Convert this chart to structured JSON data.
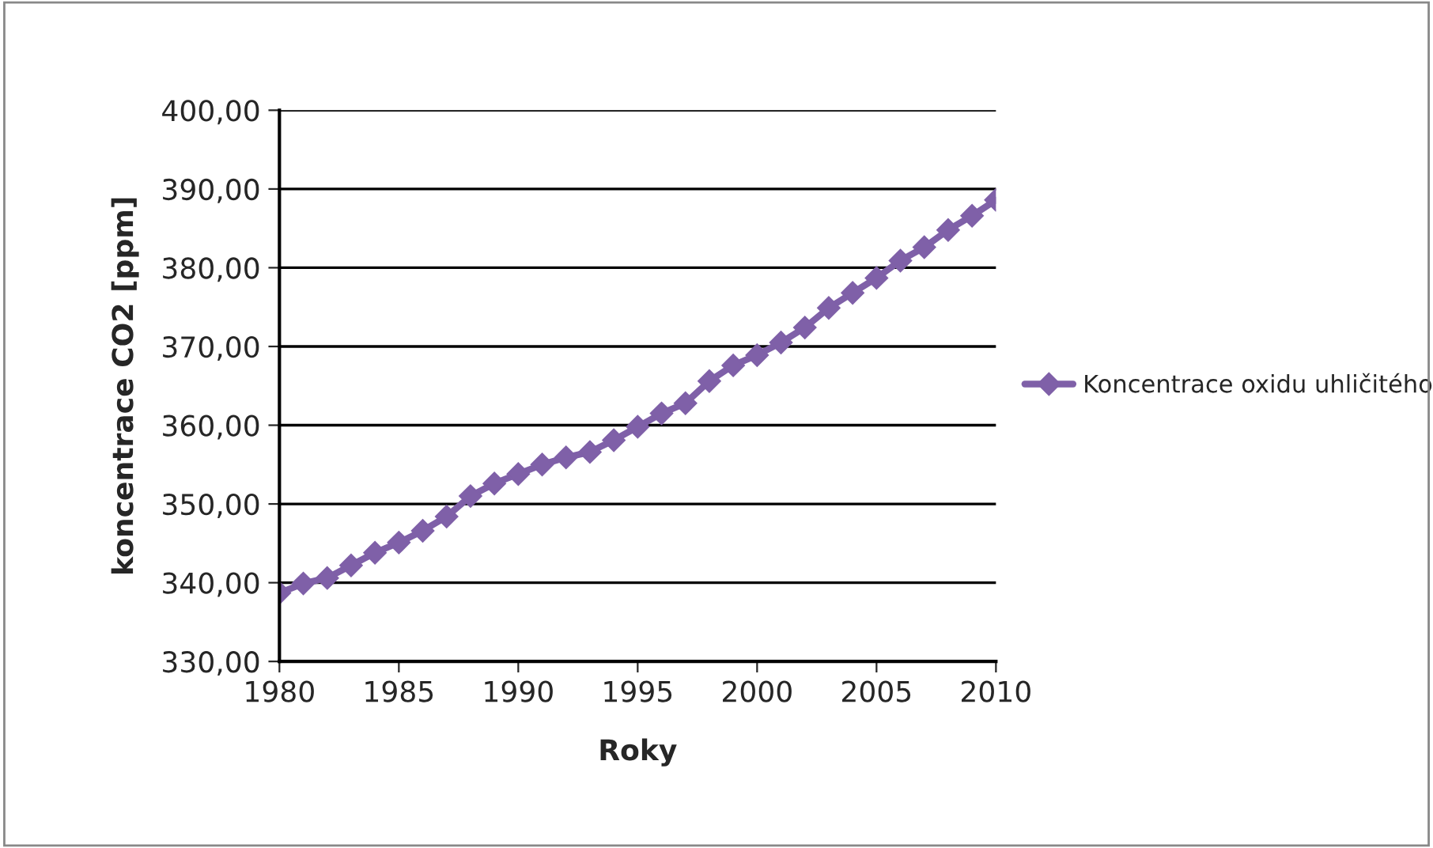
{
  "chart_data": {
    "type": "line",
    "xlabel": "Roky",
    "ylabel": "koncentrace CO2 [ppm]",
    "x": [
      1980,
      1981,
      1982,
      1983,
      1984,
      1985,
      1986,
      1987,
      1988,
      1989,
      1990,
      1991,
      1992,
      1993,
      1994,
      1995,
      1996,
      1997,
      1998,
      1999,
      2000,
      2001,
      2002,
      2003,
      2004,
      2005,
      2006,
      2007,
      2008,
      2009,
      2010
    ],
    "series": [
      {
        "name": "Koncentrace oxidu uhličitého",
        "color": "#7f60a8",
        "values": [
          338.7,
          339.9,
          340.6,
          342.2,
          343.8,
          345.1,
          346.6,
          348.4,
          351.0,
          352.6,
          353.8,
          355.0,
          355.9,
          356.6,
          358.1,
          359.8,
          361.5,
          362.8,
          365.6,
          367.6,
          368.9,
          370.5,
          372.4,
          374.9,
          376.8,
          378.7,
          380.9,
          382.6,
          384.8,
          386.6,
          388.6
        ]
      }
    ],
    "xlim": [
      1980,
      2010
    ],
    "xticks": [
      1980,
      1985,
      1990,
      1995,
      2000,
      2005,
      2010
    ],
    "ylim": [
      330,
      400
    ],
    "yticks": [
      {
        "value": 330,
        "label": "330,00"
      },
      {
        "value": 340,
        "label": "340,00"
      },
      {
        "value": 350,
        "label": "350,00"
      },
      {
        "value": 360,
        "label": "360,00"
      },
      {
        "value": 370,
        "label": "370,00"
      },
      {
        "value": 380,
        "label": "380,00"
      },
      {
        "value": 390,
        "label": "390,00"
      },
      {
        "value": 400,
        "label": "400,00"
      }
    ],
    "grid": "y",
    "legend": "right",
    "marker": "diamond",
    "line_style": "solid"
  }
}
